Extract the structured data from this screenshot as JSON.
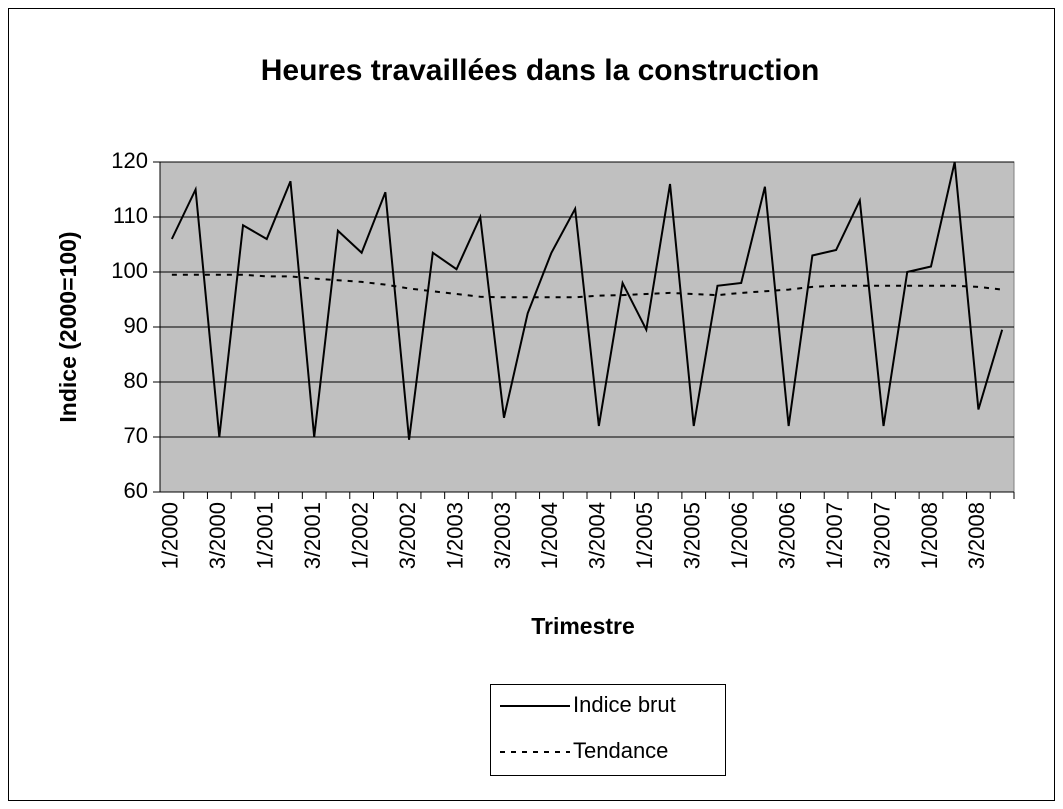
{
  "chart_data": {
    "type": "line",
    "title": "Heures travaillées dans la construction",
    "x_label": "Trimestre",
    "y_label": "Indice (2000=100)",
    "categories": [
      "1/2000",
      null,
      "3/2000",
      null,
      "1/2001",
      null,
      "3/2001",
      null,
      "1/2002",
      null,
      "3/2002",
      null,
      "1/2003",
      null,
      "3/2003",
      null,
      "1/2004",
      null,
      "3/2004",
      null,
      "1/2005",
      null,
      "3/2005",
      null,
      "1/2006",
      null,
      "3/2006",
      null,
      "1/2007",
      null,
      "3/2007",
      null,
      "1/2008",
      null,
      "3/2008",
      null
    ],
    "series": [
      {
        "name": "Indice brut",
        "color": "#000000",
        "dash": "solid",
        "values": [
          106,
          115,
          70,
          108.5,
          106,
          116.5,
          70,
          107.5,
          103.5,
          114.5,
          69.5,
          103.5,
          100.5,
          110,
          73.5,
          92.5,
          103.5,
          111.5,
          72,
          98,
          89.5,
          116,
          72,
          97.5,
          98,
          115.5,
          72,
          103,
          104,
          113,
          72,
          100,
          101,
          120,
          75,
          89.5
        ]
      },
      {
        "name": "Tendance",
        "color": "#000000",
        "dash": "dotted",
        "values": [
          99.5,
          99.5,
          99.5,
          99.5,
          99.2,
          99.2,
          98.8,
          98.5,
          98.2,
          97.7,
          97,
          96.5,
          96,
          95.5,
          95.4,
          95.4,
          95.4,
          95.4,
          95.7,
          95.8,
          96,
          96.2,
          96,
          95.8,
          96.2,
          96.5,
          96.8,
          97.3,
          97.5,
          97.5,
          97.5,
          97.5,
          97.5,
          97.5,
          97.3,
          96.8
        ]
      }
    ],
    "ylim": [
      60,
      120
    ],
    "yticks": [
      60,
      70,
      80,
      90,
      100,
      110,
      120
    ],
    "grid": true,
    "legend": "bottom"
  }
}
